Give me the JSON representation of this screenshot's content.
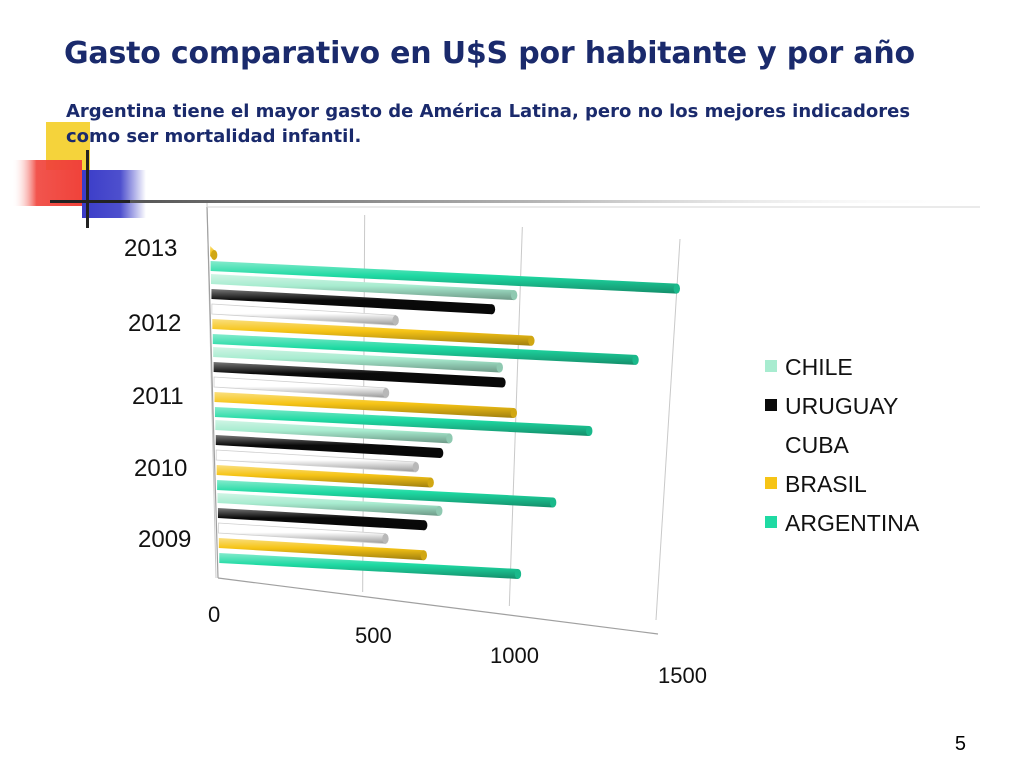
{
  "slide": {
    "title": "Gasto comparativo en U$S por habitante y por año",
    "subtitle": "Argentina tiene el mayor gasto de América Latina, pero no  los mejores indicadores  como ser mortalidad infantil.",
    "page_number": "5"
  },
  "colors": {
    "title": "#1a2a6c",
    "deco_yellow": "#f5d33b",
    "deco_red": "#f0423a",
    "deco_blue": "#3a3cc8"
  },
  "chart_data": {
    "type": "bar",
    "orientation": "horizontal",
    "title": "",
    "xlabel": "",
    "ylabel": "",
    "categories": [
      "2009",
      "2010",
      "2011",
      "2012",
      "2013"
    ],
    "xlim": [
      0,
      1500
    ],
    "xticks": [
      "0",
      "500",
      "1000",
      "1500"
    ],
    "grid": true,
    "legend_position": "right",
    "series": [
      {
        "name": "CHILE",
        "color": "#a8ecd0",
        "values": [
          750,
          780,
          940,
          980,
          null
        ]
      },
      {
        "name": "URUGUAY",
        "color": "#0a0a0a",
        "values": [
          700,
          750,
          950,
          910,
          null
        ]
      },
      {
        "name": "CUBA",
        "color": "#ffffff",
        "values": [
          570,
          670,
          570,
          600,
          null
        ]
      },
      {
        "name": "BRASIL",
        "color": "#f6c416",
        "values": [
          700,
          720,
          990,
          1040,
          5
        ]
      },
      {
        "name": "ARGENTINA",
        "color": "#1fdaa3",
        "values": [
          1020,
          1130,
          1240,
          1380,
          1500
        ]
      }
    ]
  }
}
